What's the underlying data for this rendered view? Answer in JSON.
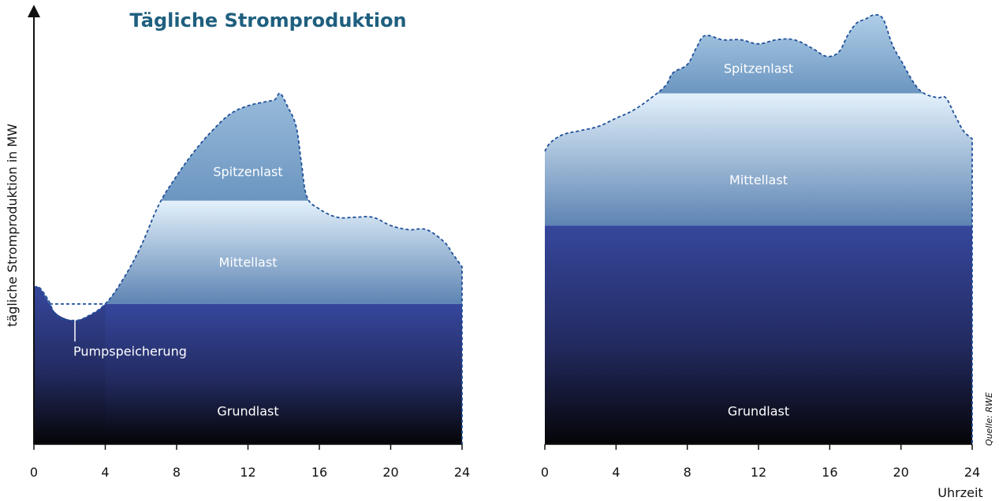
{
  "title": "Tägliche Stromproduktion",
  "y_axis_label": "tägliche Stromproduktion in MW",
  "x_axis_label": "Uhrzeit",
  "source": "Quelle: RWE",
  "chart_data": [
    {
      "type": "area",
      "title": "Tägliche Stromproduktion",
      "ylabel": "tägliche Stromproduktion in MW",
      "xlabel": "",
      "xlim": [
        0,
        24
      ],
      "ylim": [
        0,
        100
      ],
      "x_ticks": [
        0,
        4,
        8,
        12,
        16,
        20,
        24
      ],
      "bands": [
        {
          "name": "Grundlast",
          "label_x": 12,
          "label_y": 7,
          "lower": 0,
          "upper": 34
        },
        {
          "name": "Mittellast",
          "label_x": 12,
          "label_y": 43,
          "lower": 34,
          "upper_until": 59
        },
        {
          "name": "Spitzenlast",
          "label_x": 12,
          "label_y": 65,
          "lower": 59
        }
      ],
      "annotation": {
        "text": "Pumpspeicherung",
        "x": 2.3,
        "y": 23
      },
      "demand_curve": {
        "x": [
          0,
          0.3,
          0.8,
          1.3,
          2.3,
          3.0,
          4.0,
          5.0,
          6.0,
          7.0,
          8.0,
          9.0,
          10.0,
          11.0,
          12.0,
          13.0,
          13.5,
          13.8,
          14.2,
          14.7,
          15.0,
          15.3,
          16.0,
          17.0,
          18.0,
          19.0,
          20.0,
          21.0,
          22.0,
          23.0,
          23.5,
          24.0
        ],
        "y": [
          38,
          38,
          35,
          31,
          30,
          31,
          34,
          40,
          48,
          58,
          65,
          71,
          76,
          80,
          82,
          83,
          83.5,
          85,
          82,
          77,
          68,
          60,
          57,
          55,
          55,
          55,
          53,
          52,
          52,
          49,
          46,
          43
        ]
      },
      "pump_curve": {
        "x": [
          0,
          0.3,
          0.6,
          1.0,
          1.5,
          2.3,
          3.0,
          3.5,
          4.0
        ],
        "y": [
          38,
          38,
          36,
          33,
          31,
          30,
          31,
          32,
          34
        ]
      }
    },
    {
      "type": "area",
      "title": "",
      "ylabel": "",
      "xlabel": "Uhrzeit",
      "xlim": [
        0,
        24
      ],
      "ylim": [
        0,
        100
      ],
      "x_ticks": [
        0,
        4,
        8,
        12,
        16,
        20,
        24
      ],
      "bands": [
        {
          "name": "Grundlast",
          "label_x": 12,
          "label_y": 7,
          "lower": 0,
          "upper": 53
        },
        {
          "name": "Mittellast",
          "label_x": 12,
          "label_y": 63,
          "lower": 53,
          "upper": 85
        },
        {
          "name": "Spitzenlast",
          "label_x": 12,
          "label_y": 90,
          "lower": 85
        }
      ],
      "demand_curve": {
        "x": [
          0,
          0.3,
          1.0,
          2.0,
          3.0,
          4.0,
          5.0,
          6.0,
          6.8,
          7.2,
          8.0,
          8.5,
          9.0,
          10.0,
          11.0,
          12.0,
          13.0,
          14.0,
          15.0,
          15.8,
          16.5,
          17.0,
          17.5,
          18.0,
          18.5,
          19.0,
          19.5,
          20.0,
          21.0,
          22.0,
          22.5,
          23.0,
          23.5,
          24.0
        ],
        "y": [
          71,
          73,
          75,
          76,
          77,
          79,
          81,
          84,
          87,
          90,
          92,
          96,
          99,
          98,
          98,
          97,
          98,
          98,
          96,
          94,
          95,
          99,
          102,
          103,
          104,
          103,
          97,
          93,
          86,
          84,
          84,
          80,
          76,
          74
        ]
      }
    }
  ]
}
